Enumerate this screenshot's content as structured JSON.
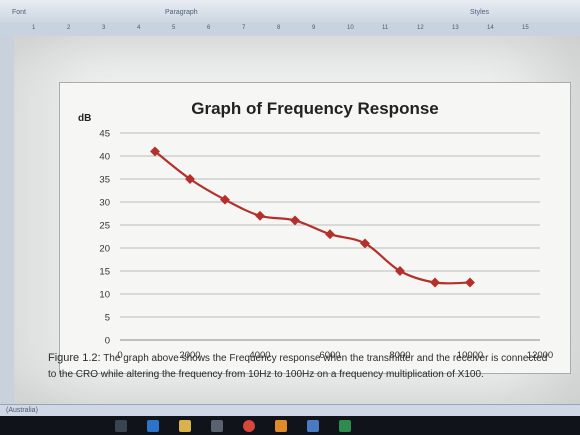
{
  "ribbon": {
    "font_label": "Font",
    "paragraph_label": "Paragraph",
    "styles_label": "Styles"
  },
  "ruler": {
    "ticks": [
      "1",
      "2",
      "3",
      "4",
      "5",
      "6",
      "7",
      "8",
      "9",
      "10",
      "11",
      "12",
      "13",
      "14",
      "15"
    ]
  },
  "chart_data": {
    "type": "line",
    "title": "Graph of Frequency Response",
    "xlabel": "",
    "ylabel": "dB",
    "x": [
      1000,
      2000,
      3000,
      4000,
      5000,
      6000,
      7000,
      8000,
      9000,
      10000
    ],
    "series": [
      {
        "values": [
          41,
          35,
          30.5,
          27,
          26,
          23,
          21,
          15,
          12.5,
          12.5
        ],
        "color": "#b5302a"
      }
    ],
    "xlim": [
      0,
      12000
    ],
    "ylim": [
      0,
      45
    ],
    "xticks": [
      0,
      2000,
      4000,
      6000,
      8000,
      10000,
      12000
    ],
    "yticks": [
      0,
      5,
      10,
      15,
      20,
      25,
      30,
      35,
      40,
      45
    ],
    "grid": "horizontal",
    "legend": "none"
  },
  "caption": {
    "lead": "Figure 1.2:",
    "text": " The graph above shows the Frequency response when the transmitter and the receiver is connected to the CRO while altering the frequency from 10Hz to 100Hz on a frequency multiplication of X100."
  },
  "status": {
    "language": "(Australia)"
  }
}
